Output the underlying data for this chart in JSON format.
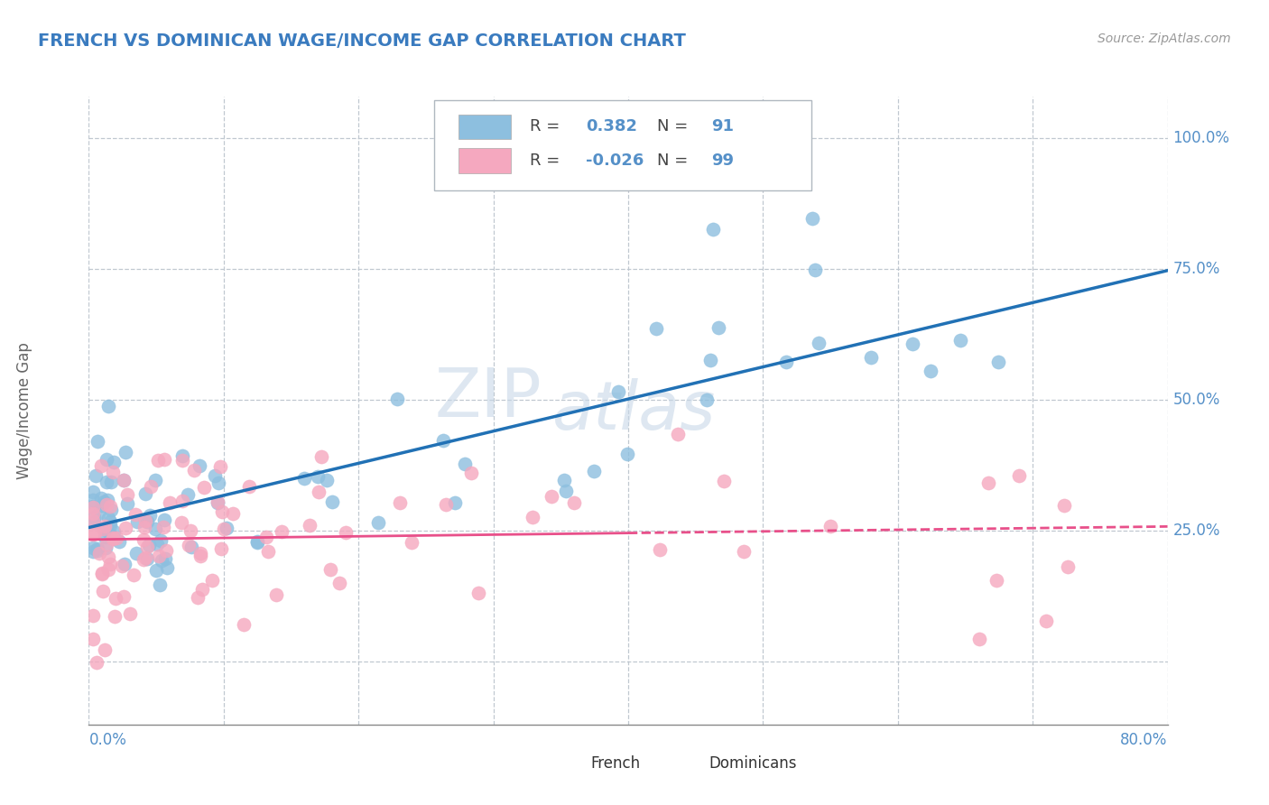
{
  "title": "FRENCH VS DOMINICAN WAGE/INCOME GAP CORRELATION CHART",
  "source": "Source: ZipAtlas.com",
  "xlim": [
    0.0,
    0.8
  ],
  "ylim": [
    -0.12,
    1.08
  ],
  "french_R": 0.382,
  "french_N": 91,
  "dominican_R": -0.026,
  "dominican_N": 99,
  "french_color": "#8dbfdf",
  "dominican_color": "#f5a8bf",
  "french_line_color": "#2171b5",
  "dominican_line_color": "#e8508a",
  "watermark_color": "#c8d8e8",
  "background_color": "#ffffff",
  "grid_color": "#c0c8d0",
  "title_color": "#3a7bbf",
  "axis_label_color": "#5590c8",
  "ylabel_text": "Wage/Income Gap",
  "bottom_legend_labels": [
    "French",
    "Dominicans"
  ],
  "legend_R1": "R =  0.382",
  "legend_N1": "N =  91",
  "legend_R2": "R = -0.026",
  "legend_N2": "N =  99"
}
